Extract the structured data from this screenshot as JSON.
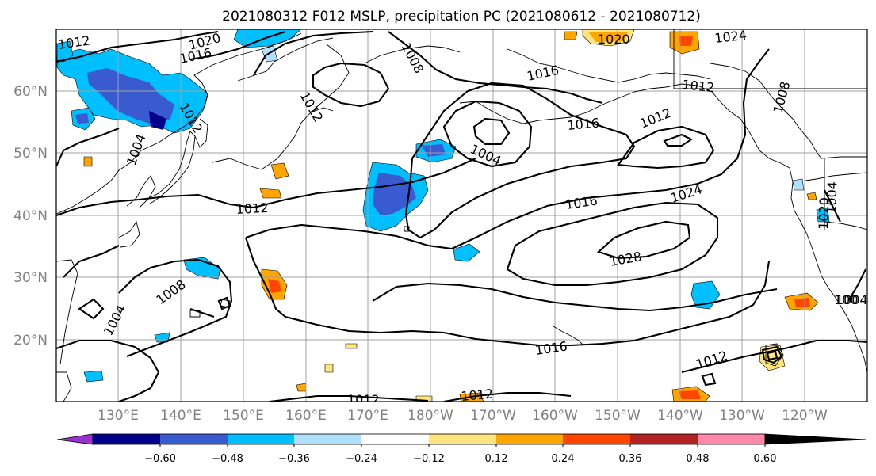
{
  "title": "2021080312 F012 MSLP, precipitation PC (2021080612 - 2021080712)",
  "lon_labels": [
    "130°E",
    "140°E",
    "150°E",
    "160°E",
    "170°E",
    "180°W",
    "170°W",
    "160°W",
    "150°W",
    "140°W",
    "130°W",
    "120°W"
  ],
  "lat_labels": [
    "60°N",
    "50°N",
    "40°N",
    "30°N",
    "20°N"
  ],
  "isobar_labels": [
    "1012",
    "1020",
    "1016",
    "1008",
    "1012",
    "1004",
    "1012",
    "1016",
    "1016",
    "1008",
    "1004",
    "1012",
    "1012",
    "1024",
    "1012",
    "1020",
    "1024",
    "1016",
    "1004",
    "1028",
    "1008",
    "1004",
    "1016",
    "1012",
    "1012",
    "1012",
    "1004",
    "1020",
    "100"
  ],
  "colorbar": {
    "colors": [
      "#9932cc",
      "#00008b",
      "#3a5bd0",
      "#00bfff",
      "#b0e0ff",
      "#ffffff",
      "#ffe57f",
      "#ffa500",
      "#ff4500",
      "#b22222",
      "#ff88a8"
    ],
    "labels": [
      "−0.60",
      "−0.48",
      "−0.36",
      "−0.24",
      "−0.12",
      "0.12",
      "0.24",
      "0.36",
      "0.48",
      "0.60"
    ]
  },
  "shading_colors": {
    "dark_blue": "#3a5bd0",
    "sky_blue": "#00bfff",
    "pale_blue": "#b0e0ff",
    "pale_yellow": "#ffe57f",
    "orange": "#ffa500",
    "red_orange": "#ff4500"
  }
}
